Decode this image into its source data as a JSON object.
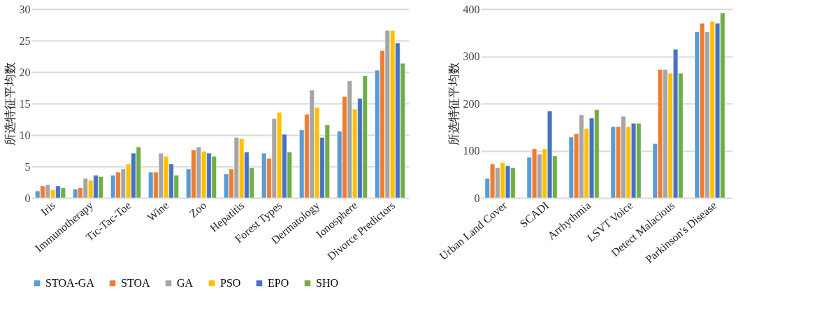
{
  "chart_data": [
    {
      "type": "bar",
      "ylabel": "所选特征平均数",
      "categories": [
        "Iris",
        "Immunotherapy",
        "Tic-Tac-Toe",
        "Wine",
        "Zoo",
        "Hepatitis",
        "Forest Types",
        "Dermatology",
        "Ionosphere",
        "Divorce Predictors"
      ],
      "ylim": [
        0,
        30
      ],
      "yticks": [
        0,
        5,
        10,
        15,
        20,
        25,
        30
      ],
      "grid": "y",
      "legend": "bottom",
      "series": [
        {
          "name": "STOA-GA",
          "color": "#5b9bd5",
          "values": [
            1.1,
            1.4,
            3.6,
            4.1,
            4.6,
            3.8,
            7.1,
            10.8,
            10.6,
            20.3
          ]
        },
        {
          "name": "STOA",
          "color": "#ed7d31",
          "values": [
            1.9,
            1.6,
            4.1,
            4.1,
            7.6,
            4.6,
            6.3,
            13.3,
            16.1,
            23.4
          ]
        },
        {
          "name": "GA",
          "color": "#a5a5a5",
          "values": [
            2.1,
            3.1,
            4.6,
            7.1,
            8.1,
            9.6,
            12.6,
            17.1,
            18.6,
            26.6
          ]
        },
        {
          "name": "PSO",
          "color": "#ffc000",
          "values": [
            1.3,
            2.8,
            5.4,
            6.6,
            7.4,
            9.4,
            13.6,
            14.4,
            14.1,
            26.6
          ]
        },
        {
          "name": "EPO",
          "color": "#4472c4",
          "values": [
            1.9,
            3.6,
            7.1,
            5.4,
            7.1,
            7.3,
            10.1,
            9.6,
            15.8,
            24.6
          ]
        },
        {
          "name": "SHO",
          "color": "#70ad47",
          "values": [
            1.6,
            3.4,
            8.1,
            3.6,
            6.6,
            4.8,
            7.3,
            11.6,
            19.4,
            21.4
          ]
        }
      ]
    },
    {
      "type": "bar",
      "ylabel": "所选特征平均数",
      "categories": [
        "Urban Land Cover",
        "SCADI",
        "Arrhythmia",
        "LSVT Voice",
        "Detect Malacious",
        "Parkinson's Disease"
      ],
      "ylim": [
        0,
        400
      ],
      "yticks": [
        0,
        100,
        200,
        300,
        400
      ],
      "grid": "y",
      "legend": "bottom",
      "series": [
        {
          "name": "STOA-GA",
          "color": "#5b9bd5",
          "values": [
            41,
            86,
            129,
            151,
            115,
            352
          ]
        },
        {
          "name": "STOA",
          "color": "#ed7d31",
          "values": [
            72,
            104,
            136,
            151,
            272,
            370
          ]
        },
        {
          "name": "GA",
          "color": "#a5a5a5",
          "values": [
            64,
            93,
            176,
            173,
            272,
            352
          ]
        },
        {
          "name": "PSO",
          "color": "#ffc000",
          "values": [
            75,
            104,
            147,
            151,
            264,
            374
          ]
        },
        {
          "name": "EPO",
          "color": "#4472c4",
          "values": [
            68,
            184,
            169,
            158,
            315,
            370
          ]
        },
        {
          "name": "SHO",
          "color": "#70ad47",
          "values": [
            64,
            89,
            187,
            158,
            264,
            392
          ]
        }
      ]
    }
  ]
}
